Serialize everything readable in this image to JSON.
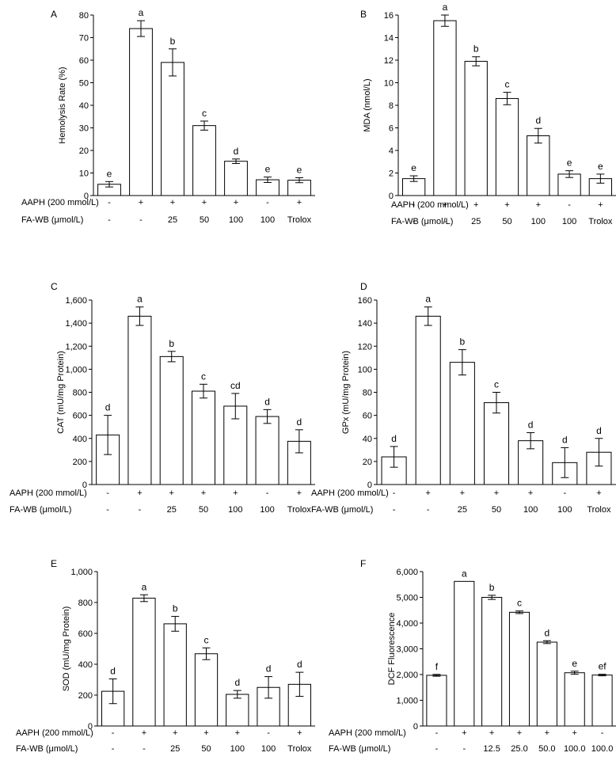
{
  "chart_data": [
    {
      "type": "bar",
      "panel": "A",
      "ylabel": "Hemolysis Rate (%)",
      "ylim": [
        0,
        80
      ],
      "yticks": [
        "0",
        "10",
        "20",
        "30",
        "40",
        "50",
        "60",
        "70",
        "80"
      ],
      "values": [
        5,
        74,
        59,
        31,
        15.2,
        7,
        6.8
      ],
      "errors": [
        1.2,
        3.5,
        6,
        2,
        1,
        1.2,
        1.1
      ],
      "significance": [
        "e",
        "a",
        "b",
        "c",
        "d",
        "e",
        "e"
      ],
      "rows": [
        {
          "label": "AAPH (200 mmol/L)",
          "values": [
            "-",
            "+",
            "+",
            "+",
            "+",
            "-",
            "+"
          ]
        },
        {
          "label": "FA-WB (μmol/L)",
          "values": [
            "-",
            "-",
            "25",
            "50",
            "100",
            "100",
            "Trolox"
          ]
        }
      ]
    },
    {
      "type": "bar",
      "panel": "B",
      "ylabel": "MDA (nmol/L)",
      "ylim": [
        0,
        16
      ],
      "yticks": [
        "0",
        "2",
        "4",
        "6",
        "8",
        "10",
        "12",
        "14",
        "16"
      ],
      "values": [
        1.5,
        15.5,
        11.9,
        8.6,
        5.3,
        1.9,
        1.5
      ],
      "errors": [
        0.25,
        0.5,
        0.4,
        0.55,
        0.65,
        0.3,
        0.4
      ],
      "significance": [
        "e",
        "a",
        "b",
        "c",
        "d",
        "e",
        "e"
      ],
      "rows": [
        {
          "label": "AAPH (200 mmol/L)",
          "values": [
            "-",
            "+",
            "+",
            "+",
            "+",
            "-",
            "+"
          ]
        },
        {
          "label": "FA-WB (μmol/L)",
          "values": [
            "-",
            "-",
            "25",
            "50",
            "100",
            "100",
            "Trolox"
          ]
        }
      ]
    },
    {
      "type": "bar",
      "panel": "C",
      "ylabel": "CAT (mU/mg Protein)",
      "ylim": [
        0,
        1600
      ],
      "yticks": [
        "0",
        "200",
        "400",
        "600",
        "800",
        "1,000",
        "1,200",
        "1,400",
        "1,600"
      ],
      "values": [
        430,
        1460,
        1110,
        810,
        680,
        590,
        375
      ],
      "errors": [
        170,
        80,
        45,
        60,
        110,
        60,
        100
      ],
      "significance": [
        "d",
        "a",
        "b",
        "c",
        "cd",
        "d",
        "d"
      ],
      "rows": [
        {
          "label": "AAPH (200 mmol/L)",
          "values": [
            "-",
            "+",
            "+",
            "+",
            "+",
            "-",
            "+"
          ]
        },
        {
          "label": "FA-WB (μmol/L)",
          "values": [
            "-",
            "-",
            "25",
            "50",
            "100",
            "100",
            "Trolox"
          ]
        }
      ]
    },
    {
      "type": "bar",
      "panel": "D",
      "ylabel": "GPx (mU/mg Protein)",
      "ylim": [
        0,
        160
      ],
      "yticks": [
        "0",
        "20",
        "40",
        "60",
        "80",
        "100",
        "120",
        "140",
        "160"
      ],
      "values": [
        24,
        146,
        106,
        71,
        38,
        19,
        28
      ],
      "errors": [
        9,
        8,
        11,
        9,
        7,
        13,
        12
      ],
      "significance": [
        "d",
        "a",
        "b",
        "c",
        "d",
        "d",
        "d"
      ],
      "rows": [
        {
          "label": "AAPH (200 mmol/L)",
          "values": [
            "-",
            "+",
            "+",
            "+",
            "+",
            "-",
            "+"
          ]
        },
        {
          "label": "FA-WB (μmol/L)",
          "values": [
            "-",
            "-",
            "25",
            "50",
            "100",
            "100",
            "Trolox"
          ]
        }
      ]
    },
    {
      "type": "bar",
      "panel": "E",
      "ylabel": "SOD (mU/mg Protein)",
      "ylim": [
        0,
        1000
      ],
      "yticks": [
        "0",
        "200",
        "400",
        "600",
        "800",
        "1,000"
      ],
      "values": [
        225,
        828,
        662,
        468,
        205,
        250,
        270
      ],
      "errors": [
        80,
        22,
        48,
        38,
        25,
        70,
        78
      ],
      "significance": [
        "d",
        "a",
        "b",
        "c",
        "d",
        "d",
        "d"
      ],
      "rows": [
        {
          "label": "AAPH (200 mmol/L)",
          "values": [
            "-",
            "+",
            "+",
            "+",
            "+",
            "-",
            "+"
          ]
        },
        {
          "label": "FA-WB (μmol/L)",
          "values": [
            "-",
            "-",
            "25",
            "50",
            "100",
            "100",
            "Trolox"
          ]
        }
      ]
    },
    {
      "type": "bar",
      "panel": "F",
      "ylabel": "DCF Fluorescence",
      "ylim": [
        0,
        6000
      ],
      "yticks": [
        "0",
        "1,000",
        "2,000",
        "3,000",
        "4,000",
        "5,000",
        "6,000"
      ],
      "values": [
        1970,
        5620,
        5000,
        4420,
        3260,
        2070,
        1980
      ],
      "errors": [
        35,
        0,
        80,
        50,
        55,
        60,
        30
      ],
      "significance": [
        "f",
        "a",
        "b",
        "c",
        "d",
        "e",
        "ef"
      ],
      "rows": [
        {
          "label": "AAPH (200 mmol/L)",
          "values": [
            "-",
            "+",
            "+",
            "+",
            "+",
            "+",
            "-"
          ]
        },
        {
          "label": "FA-WB (μmol/L)",
          "values": [
            "-",
            "-",
            "12.5",
            "25.0",
            "50.0",
            "100.0",
            "100.0"
          ]
        }
      ]
    }
  ]
}
